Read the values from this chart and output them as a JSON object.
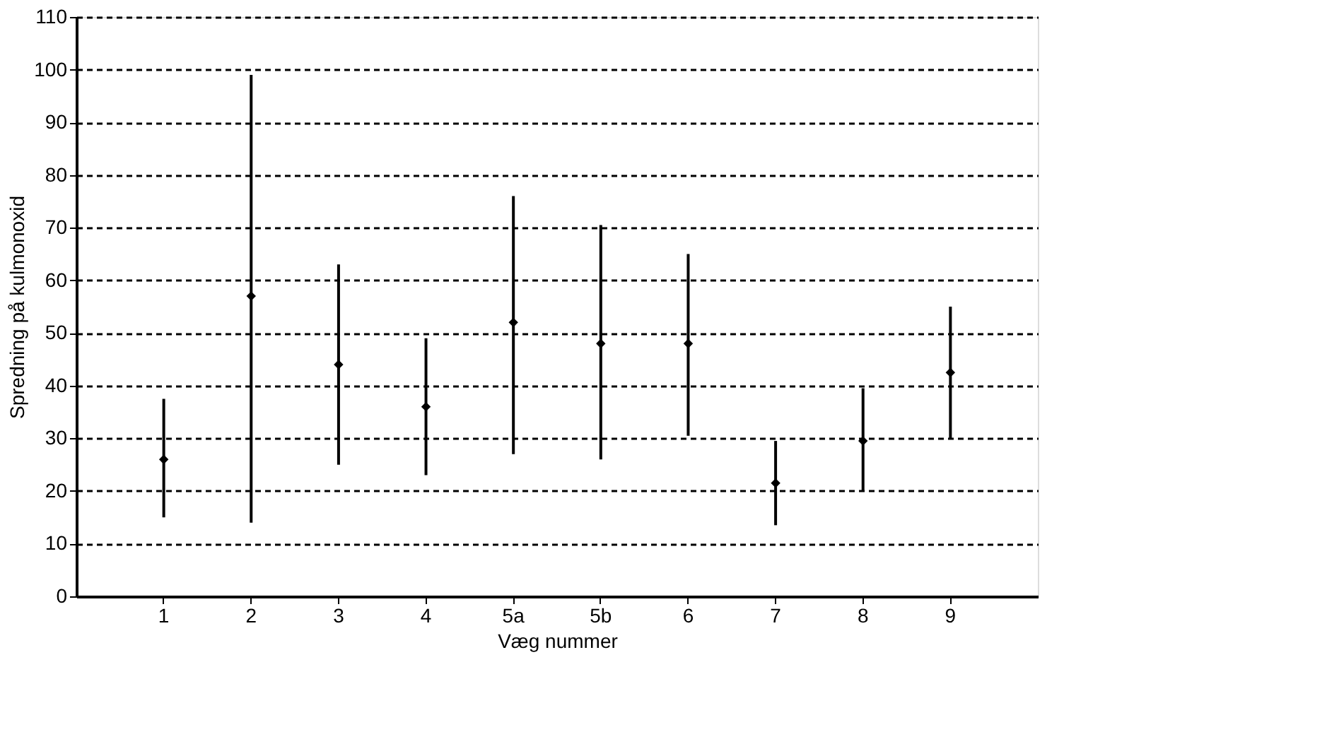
{
  "chart_data": {
    "type": "scatter",
    "xlabel": "Væg nummer",
    "ylabel": "Spredning på kulmonoxid",
    "categories": [
      "1",
      "2",
      "3",
      "4",
      "5a",
      "5b",
      "6",
      "7",
      "8",
      "9"
    ],
    "values": [
      26,
      57,
      44,
      36,
      52,
      48,
      48,
      21.5,
      29.5,
      42.5
    ],
    "errors": [
      [
        15,
        37.5
      ],
      [
        14,
        99
      ],
      [
        25,
        63
      ],
      [
        23,
        49
      ],
      [
        27,
        76
      ],
      [
        26,
        70.5
      ],
      [
        30.5,
        65
      ],
      [
        13.5,
        29.5
      ],
      [
        20,
        39.5
      ],
      [
        30,
        55
      ]
    ],
    "color": "#000000",
    "ylim": [
      0,
      110
    ],
    "yticks": [
      0,
      10,
      20,
      30,
      40,
      50,
      60,
      70,
      80,
      90,
      100,
      110
    ],
    "grid": "y",
    "line_style": "dashed",
    "marker": "diamond"
  }
}
